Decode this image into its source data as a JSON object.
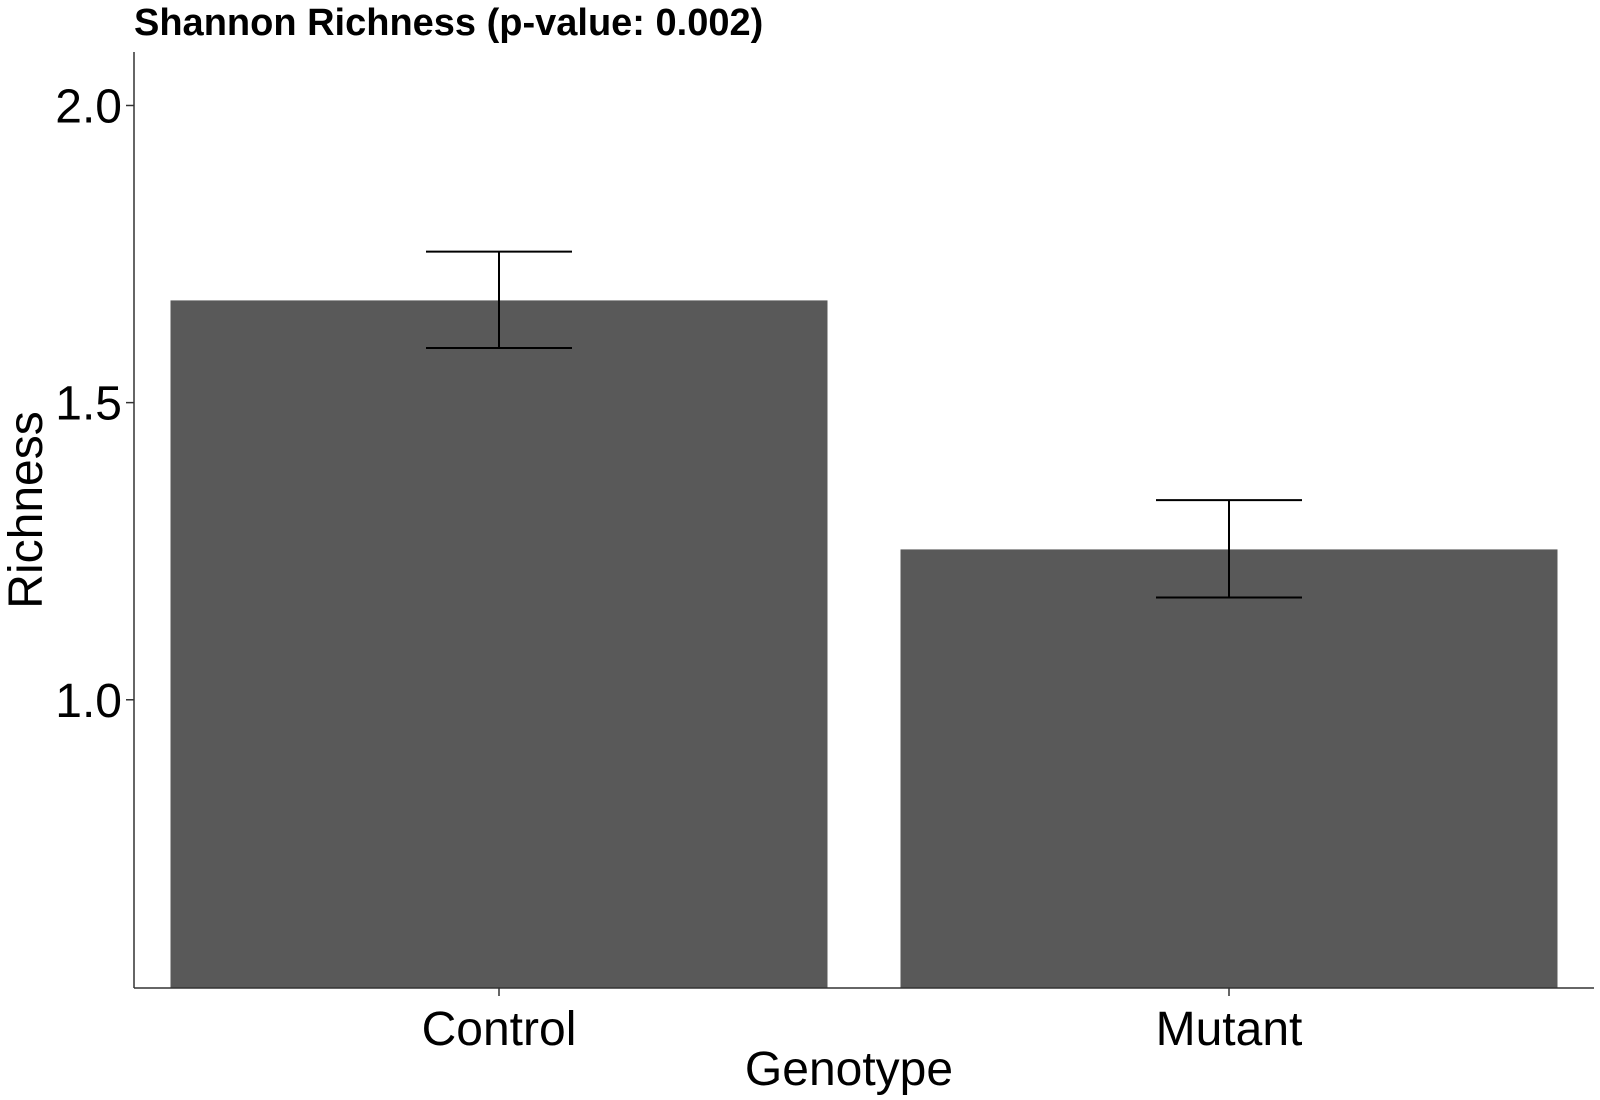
{
  "chart_data": {
    "type": "bar",
    "title": "Shannon Richness (p-value: 0.002)",
    "xlabel": "Genotype",
    "ylabel": "Richness",
    "categories": [
      "Control",
      "Mutant"
    ],
    "values": [
      1.672,
      1.253
    ],
    "error_bars": {
      "lower": [
        1.592,
        1.172
      ],
      "upper": [
        1.754,
        1.336
      ]
    },
    "yticks": [
      "1.0",
      "1.5",
      "2.0"
    ],
    "ylim": [
      0.515,
      2.09
    ],
    "grid": false,
    "legend": "none",
    "colors": {
      "bar": "#595959",
      "axis": "#333333",
      "error_bar": "#000000",
      "text": "#000000"
    }
  }
}
